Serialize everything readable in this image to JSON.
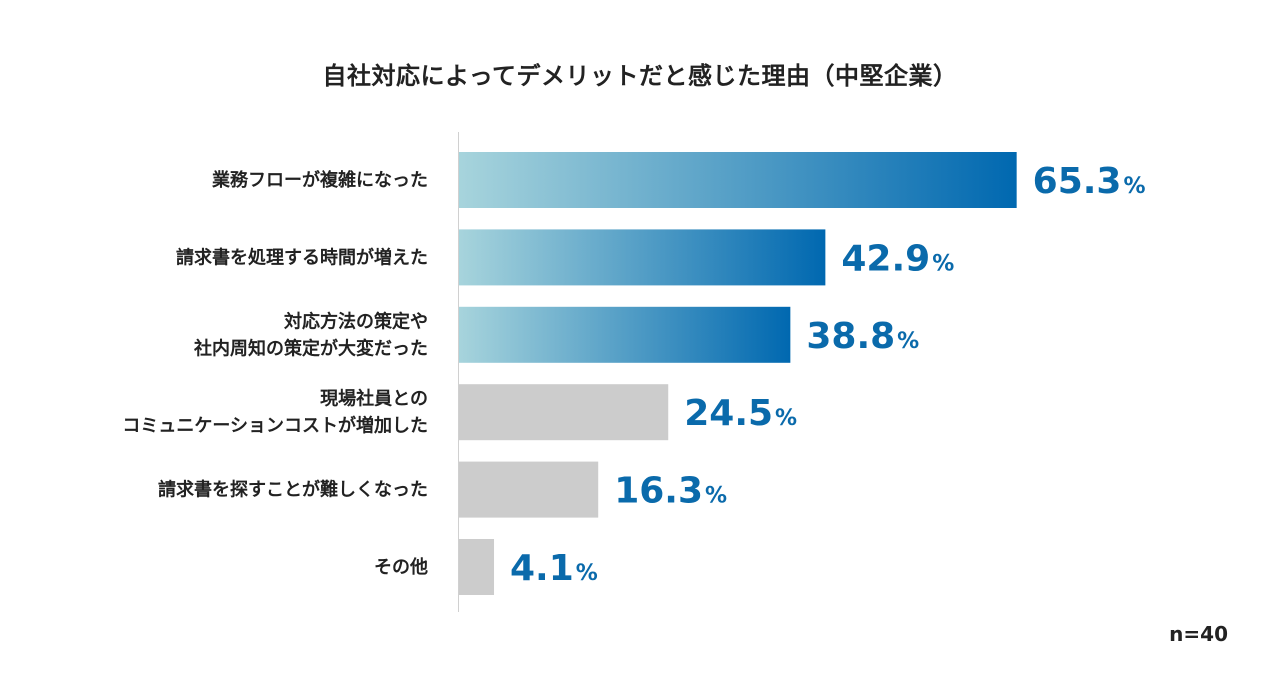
{
  "chart_data": {
    "type": "bar",
    "orientation": "horizontal",
    "title": "自社対応によってデメリットだと感じた理由（中堅企業）",
    "categories": [
      [
        "業務フローが複雑になった"
      ],
      [
        "請求書を処理する時間が増えた"
      ],
      [
        "対応方法の策定や",
        "社内周知の策定が大変だった"
      ],
      [
        "現場社員との",
        "コミュニケーションコストが増加した"
      ],
      [
        "請求書を探すことが難しくなった"
      ],
      [
        "その他"
      ]
    ],
    "values": [
      65.3,
      42.9,
      38.8,
      24.5,
      16.3,
      4.1
    ],
    "value_labels": [
      "65.3",
      "42.9",
      "38.8",
      "24.5",
      "16.3",
      "4.1"
    ],
    "unit": "%",
    "highlighted": [
      true,
      true,
      true,
      false,
      false,
      false
    ],
    "xlim": [
      0,
      100
    ],
    "note": "n=40"
  },
  "colors": {
    "highlight_start": "#a7d4dc",
    "highlight_end": "#0068b0",
    "muted": "#cccccc",
    "value_text": "#0a6aab",
    "axis": "#d0d0d0"
  }
}
